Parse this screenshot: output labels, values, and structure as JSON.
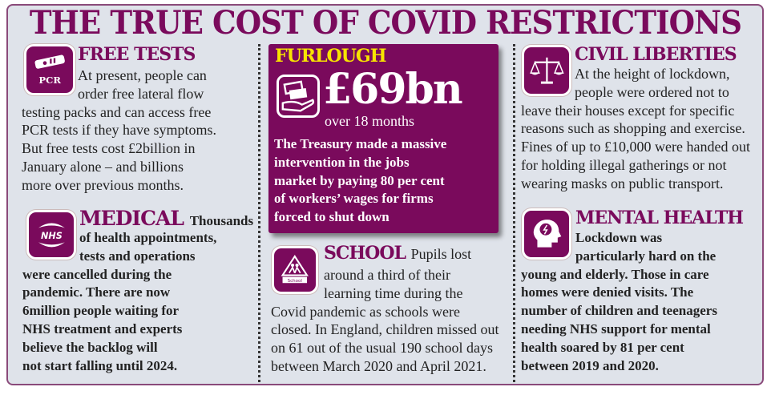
{
  "title": "THE TRUE COST OF COVID RESTRICTIONS",
  "colors": {
    "accent": "#7a0a5c",
    "highlight": "#f7e300",
    "background": "#dfe3ea"
  },
  "free_tests": {
    "icon": "pcr-test-icon",
    "icon_label": "PCR",
    "heading": "FREE TESTS",
    "lines": [
      "At present, people can",
      "order free lateral flow",
      "testing packs and can access free",
      "PCR tests if they have symptoms.",
      "But free tests cost £2billion in",
      "January alone – and billions",
      "more over previous months."
    ]
  },
  "medical": {
    "icon": "nhs-hands-icon",
    "icon_label": "NHS",
    "heading": "MEDICAL",
    "lead": "Thousands",
    "lines": [
      "of health appointments,",
      "tests and operations",
      "were cancelled during the",
      "pandemic. There are now",
      "6million people waiting for",
      "NHS treatment and experts",
      "believe the backlog will",
      "not start falling until 2024."
    ]
  },
  "furlough": {
    "icon": "money-hand-icon",
    "tag": "FURLOUGH",
    "amount": "£69bn",
    "period": "over 18 months",
    "lines": [
      "The Treasury made a massive",
      "intervention in the jobs",
      "market by paying 80 per cent",
      "of workers’ wages for firms",
      "forced to shut down"
    ]
  },
  "school": {
    "icon": "school-sign-icon",
    "icon_label": "School",
    "heading": "SCHOOL",
    "lead": "Pupils lost",
    "lines": [
      "around a third of their",
      "learning time during the",
      "Covid pandemic as schools were",
      "closed. In England, children missed out",
      "on 61 out of the usual 190 school days",
      "between March 2020 and April 2021."
    ]
  },
  "civil_liberties": {
    "icon": "scales-icon",
    "heading": "CIVIL LIBERTIES",
    "lines": [
      "At the height of lockdown,",
      "people were ordered not to",
      "leave their houses except for specific",
      "reasons such as shopping and exercise.",
      "Fines of up to £10,000 were handed out",
      "for holding illegal gatherings or not",
      "wearing masks on public transport."
    ]
  },
  "mental_health": {
    "icon": "head-brain-icon",
    "heading": "MENTAL HEALTH",
    "lines": [
      "Lockdown was",
      "particularly hard on the",
      "young and elderly. Those in care",
      "homes were denied visits. The",
      "number of children and teenagers",
      "needing NHS support for mental",
      "health soared by 81 per cent",
      "between 2019 and 2020."
    ]
  }
}
